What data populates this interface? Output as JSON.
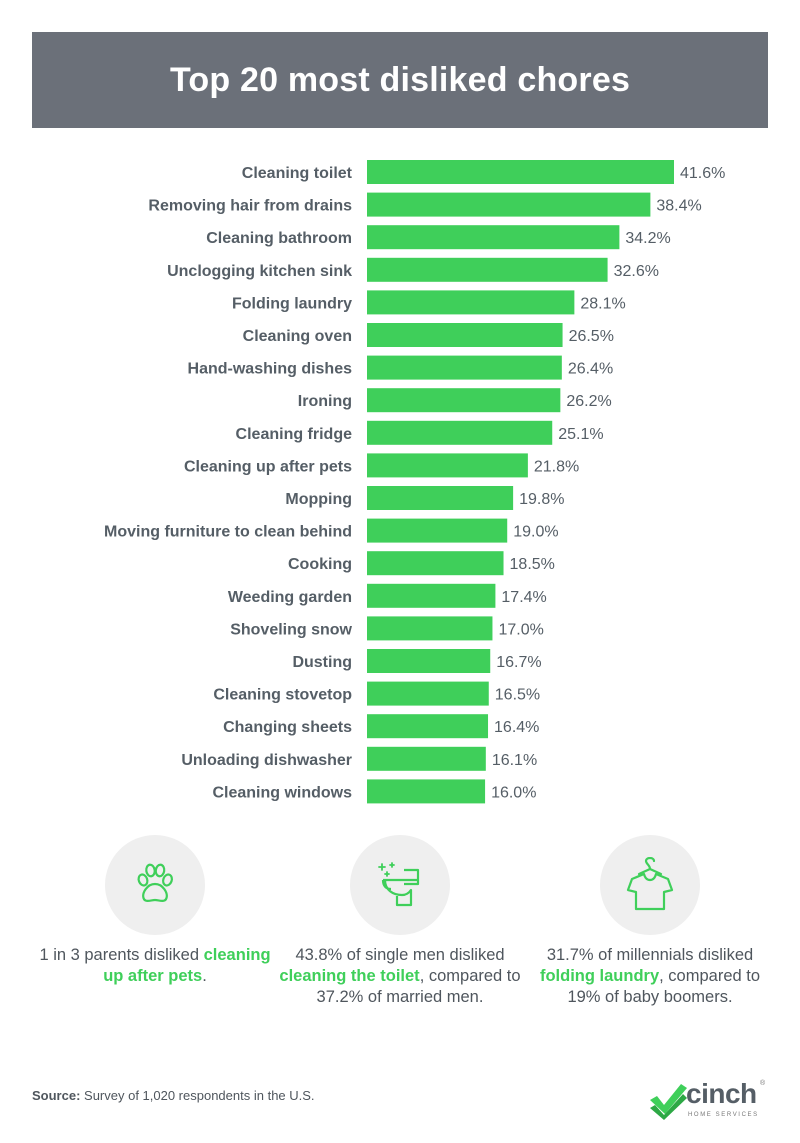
{
  "chart_data": {
    "type": "bar",
    "orientation": "horizontal",
    "title": "Top 20 most disliked chores",
    "categories": [
      "Cleaning toilet",
      "Removing hair from drains",
      "Cleaning bathroom",
      "Unclogging kitchen sink",
      "Folding laundry",
      "Cleaning oven",
      "Hand-washing dishes",
      "Ironing",
      "Cleaning fridge",
      "Cleaning up after pets",
      "Mopping",
      "Moving furniture to clean behind",
      "Cooking",
      "Weeding garden",
      "Shoveling snow",
      "Dusting",
      "Cleaning stovetop",
      "Changing sheets",
      "Unloading dishwasher",
      "Cleaning windows"
    ],
    "values": [
      41.6,
      38.4,
      34.2,
      32.6,
      28.1,
      26.5,
      26.4,
      26.2,
      25.1,
      21.8,
      19.8,
      19.0,
      18.5,
      17.4,
      17.0,
      16.7,
      16.5,
      16.4,
      16.1,
      16.0
    ],
    "value_labels": [
      "41.6%",
      "38.4%",
      "34.2%",
      "32.6%",
      "28.1%",
      "26.5%",
      "26.4%",
      "26.2%",
      "25.1%",
      "21.8%",
      "19.8%",
      "19.0%",
      "18.5%",
      "17.4%",
      "17.0%",
      "16.7%",
      "16.5%",
      "16.4%",
      "16.1%",
      "16.0%"
    ],
    "unit": "%",
    "xlim": [
      0,
      41.6
    ],
    "bar_color": "#3fcf5a"
  },
  "colors": {
    "header_bg": "#6b7079",
    "accent": "#3fcf5a",
    "text": "#555e66",
    "circle_bg": "#efefef"
  },
  "stats": [
    {
      "icon": "paw-icon",
      "before": "1 in 3 parents disliked ",
      "highlight": "cleaning up after pets",
      "after": "."
    },
    {
      "icon": "toilet-icon",
      "before": "43.8% of single men disliked ",
      "highlight": "cleaning the toilet",
      "after": ", compared to 37.2% of married men."
    },
    {
      "icon": "tshirt-icon",
      "before": "31.7% of millennials disliked ",
      "highlight": "folding laundry",
      "after": ", compared to 19% of baby boomers."
    }
  ],
  "source": {
    "label": "Source:",
    "text": " Survey of 1,020 respondents in the U.S."
  },
  "logo": {
    "name": "cinch",
    "reg": "®",
    "subtitle": "HOME SERVICES"
  }
}
